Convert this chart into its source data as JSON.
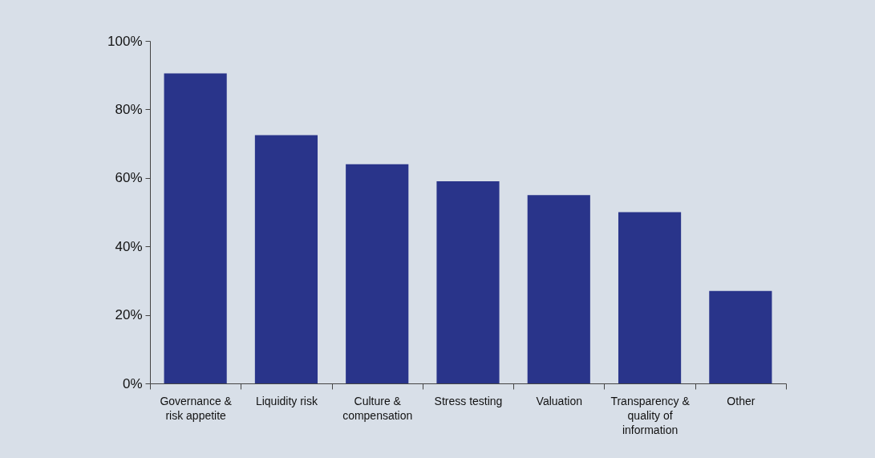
{
  "chart_data": {
    "type": "bar",
    "categories": [
      "Governance & risk appetite",
      "Liquidity risk",
      "Culture & compensation",
      "Stress testing",
      "Valuation",
      "Transparency & quality of information",
      "Other"
    ],
    "values": [
      90.5,
      72.5,
      64,
      59,
      55,
      50,
      27
    ],
    "color": "#29348a",
    "ylim": [
      0,
      100
    ],
    "yticks": [
      {
        "value": 0,
        "label": "0%"
      },
      {
        "value": 20,
        "label": "20%"
      },
      {
        "value": 40,
        "label": "40%"
      },
      {
        "value": 60,
        "label": "60%"
      },
      {
        "value": 80,
        "label": "80%"
      },
      {
        "value": 100,
        "label": "100%"
      }
    ],
    "grid": false
  }
}
